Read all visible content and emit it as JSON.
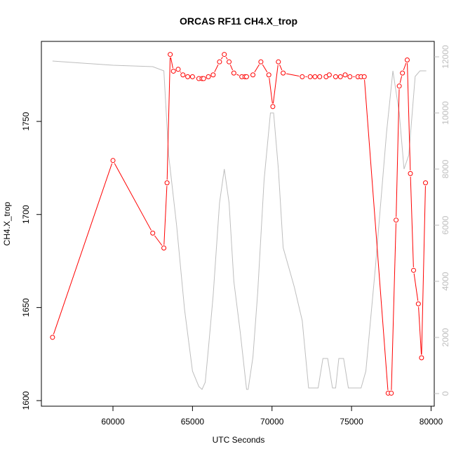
{
  "chart_data": {
    "type": "line",
    "title": "ORCAS RF11 CH4.X_trop",
    "xlabel": "UTC Seconds",
    "ylabel": "CH4.X_trop",
    "xlim": [
      55500,
      80200
    ],
    "ylim": [
      1597,
      1793
    ],
    "y2lim": [
      -450,
      12550
    ],
    "x_ticks": [
      60000,
      65000,
      70000,
      75000,
      80000
    ],
    "y_ticks": [
      1600,
      1650,
      1700,
      1750
    ],
    "y2_ticks": [
      0,
      2000,
      4000,
      6000,
      8000,
      10000,
      12000
    ],
    "grid": false,
    "legend": "none",
    "colors": {
      "primary": "#ff0000",
      "secondary": "#bebebe"
    },
    "series": [
      {
        "axis": "left",
        "style": "points-and-line",
        "color": "#ff0000",
        "x": [
          56200,
          60000,
          62500,
          63200,
          63400,
          63600,
          63800,
          64100,
          64400,
          64700,
          65000,
          65400,
          65600,
          65700,
          66000,
          66300,
          66700,
          67000,
          67300,
          67600,
          68100,
          68300,
          68400,
          68800,
          69300,
          69800,
          70050,
          70400,
          70700,
          71900,
          72400,
          72700,
          73000,
          73400,
          73600,
          74000,
          74300,
          74600,
          74900,
          75400,
          75600,
          75800,
          77300,
          77500,
          77800,
          78000,
          78200,
          78500,
          78700,
          78900,
          79200,
          79400,
          79650
        ],
        "y": [
          1634,
          1729,
          1690,
          1682,
          1717,
          1786,
          1777,
          1778,
          1775,
          1774,
          1774,
          1773,
          1773,
          1773,
          1774,
          1775,
          1782,
          1786,
          1782,
          1776,
          1774,
          1774,
          1774,
          1775,
          1782,
          1775,
          1758,
          1782,
          1776,
          1774,
          1774,
          1774,
          1774,
          1774,
          1775,
          1774,
          1774,
          1775,
          1774,
          1774,
          1774,
          1774,
          1604,
          1604,
          1697,
          1769,
          1776,
          1783,
          1722,
          1670,
          1652,
          1623,
          1717
        ]
      },
      {
        "axis": "right",
        "style": "line",
        "color": "#bebebe",
        "x": [
          56200,
          60000,
          62500,
          63200,
          63500,
          64000,
          64500,
          65000,
          65400,
          65600,
          65800,
          66000,
          66300,
          66700,
          67000,
          67300,
          67600,
          68000,
          68400,
          68500,
          68800,
          69100,
          69500,
          69900,
          70100,
          70400,
          70700,
          71400,
          71900,
          72300,
          72600,
          72900,
          73200,
          73500,
          73800,
          74000,
          74200,
          74500,
          74800,
          75100,
          75600,
          75900,
          76500,
          77200,
          77600,
          78000,
          78300,
          78600,
          79000,
          79300,
          79700
        ],
        "y": [
          11850,
          11700,
          11650,
          11500,
          8500,
          6000,
          3000,
          800,
          250,
          150,
          400,
          1600,
          3500,
          6800,
          8000,
          6800,
          4000,
          2200,
          150,
          150,
          1300,
          3600,
          7600,
          10000,
          10000,
          8000,
          5200,
          3800,
          2600,
          200,
          200,
          200,
          1250,
          1250,
          200,
          200,
          1250,
          1250,
          200,
          200,
          200,
          800,
          4500,
          9300,
          11500,
          10000,
          8000,
          8500,
          11300,
          11500,
          11500
        ]
      }
    ]
  }
}
